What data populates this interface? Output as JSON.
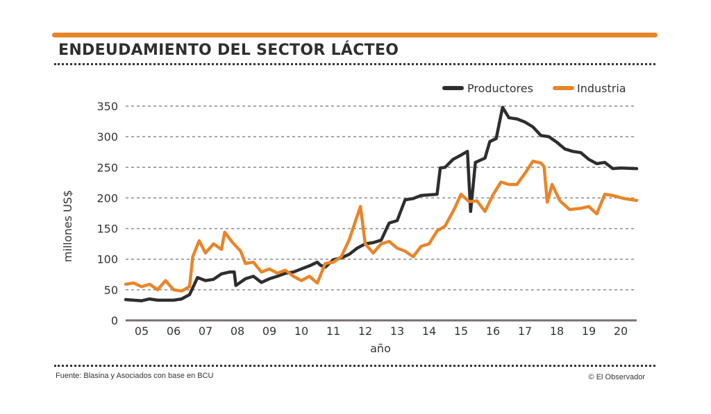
{
  "header": {
    "title": "ENDEUDAMIENTO DEL SECTOR LÁCTEO"
  },
  "footer": {
    "source": "Fuente: Blasina y Asociados con base en BCU",
    "credit": "© El Observador"
  },
  "colors": {
    "accent": "#e8852a",
    "productores": "#2e2e2e",
    "industria": "#e8852a",
    "grid": "#8a8a8a",
    "axis": "#7a6e6e"
  },
  "chart_data": {
    "type": "line",
    "title": "ENDEUDAMIENTO DEL SECTOR LÁCTEO",
    "xlabel": "año",
    "ylabel": "millones US$",
    "ylim": [
      0,
      350
    ],
    "xlim": [
      2005.0,
      2021.0
    ],
    "yticks": [
      0,
      50,
      100,
      150,
      200,
      250,
      300,
      350
    ],
    "xtick_labels": [
      "05",
      "06",
      "07",
      "08",
      "09",
      "10",
      "11",
      "12",
      "13",
      "14",
      "15",
      "16",
      "17",
      "18",
      "19",
      "20"
    ],
    "grid": true,
    "legend_position": "top-right",
    "series": [
      {
        "name": "Productores",
        "color": "#2e2e2e",
        "x": [
          2005.0,
          2005.5,
          2005.75,
          2006.0,
          2006.5,
          2006.75,
          2007.0,
          2007.25,
          2007.5,
          2007.75,
          2008.0,
          2008.25,
          2008.4,
          2008.45,
          2008.75,
          2009.0,
          2009.25,
          2009.5,
          2009.75,
          2010.0,
          2010.25,
          2010.5,
          2010.75,
          2011.0,
          2011.1,
          2011.25,
          2011.5,
          2011.75,
          2012.0,
          2012.25,
          2012.5,
          2012.75,
          2013.0,
          2013.25,
          2013.5,
          2013.75,
          2014.0,
          2014.25,
          2014.5,
          2014.75,
          2014.85,
          2015.0,
          2015.25,
          2015.5,
          2015.7,
          2015.8,
          2015.95,
          2016.25,
          2016.4,
          2016.6,
          2016.8,
          2017.0,
          2017.25,
          2017.5,
          2017.75,
          2018.0,
          2018.25,
          2018.5,
          2018.75,
          2019.0,
          2019.25,
          2019.5,
          2019.75,
          2020.0,
          2020.25,
          2020.5,
          2021.0
        ],
        "values": [
          34,
          32,
          35,
          33,
          33,
          35,
          42,
          70,
          65,
          67,
          76,
          79,
          79,
          57,
          68,
          72,
          62,
          68,
          72,
          77,
          79,
          84,
          89,
          95,
          90,
          87,
          99,
          102,
          108,
          118,
          125,
          127,
          131,
          159,
          163,
          197,
          199,
          204,
          205,
          206,
          249,
          250,
          263,
          270,
          276,
          178,
          258,
          265,
          292,
          297,
          348,
          331,
          329,
          324,
          316,
          302,
          300,
          291,
          280,
          276,
          274,
          263,
          256,
          258,
          248,
          249,
          248
        ]
      },
      {
        "name": "Industria",
        "color": "#e8852a",
        "x": [
          2005.0,
          2005.25,
          2005.5,
          2005.75,
          2006.0,
          2006.25,
          2006.5,
          2006.75,
          2007.0,
          2007.1,
          2007.3,
          2007.5,
          2007.75,
          2008.0,
          2008.1,
          2008.35,
          2008.6,
          2008.75,
          2009.0,
          2009.25,
          2009.5,
          2009.75,
          2010.0,
          2010.25,
          2010.5,
          2010.75,
          2011.0,
          2011.25,
          2011.5,
          2011.75,
          2012.0,
          2012.35,
          2012.5,
          2012.75,
          2013.0,
          2013.25,
          2013.5,
          2013.75,
          2014.0,
          2014.25,
          2014.5,
          2014.75,
          2015.0,
          2015.3,
          2015.5,
          2015.75,
          2016.0,
          2016.25,
          2016.5,
          2016.75,
          2017.0,
          2017.25,
          2017.5,
          2017.75,
          2018.0,
          2018.1,
          2018.2,
          2018.35,
          2018.6,
          2018.9,
          2019.25,
          2019.5,
          2019.75,
          2020.0,
          2020.25,
          2020.6,
          2021.0
        ],
        "values": [
          59,
          61,
          55,
          59,
          50,
          65,
          50,
          48,
          55,
          104,
          130,
          110,
          125,
          116,
          144,
          127,
          113,
          93,
          95,
          79,
          84,
          77,
          82,
          72,
          65,
          72,
          61,
          93,
          95,
          104,
          132,
          186,
          125,
          110,
          125,
          129,
          118,
          113,
          104,
          121,
          125,
          146,
          154,
          183,
          206,
          194,
          195,
          178,
          205,
          226,
          222,
          222,
          240,
          260,
          257,
          251,
          193,
          222,
          195,
          181,
          183,
          186,
          174,
          206,
          204,
          199,
          196
        ]
      }
    ]
  }
}
